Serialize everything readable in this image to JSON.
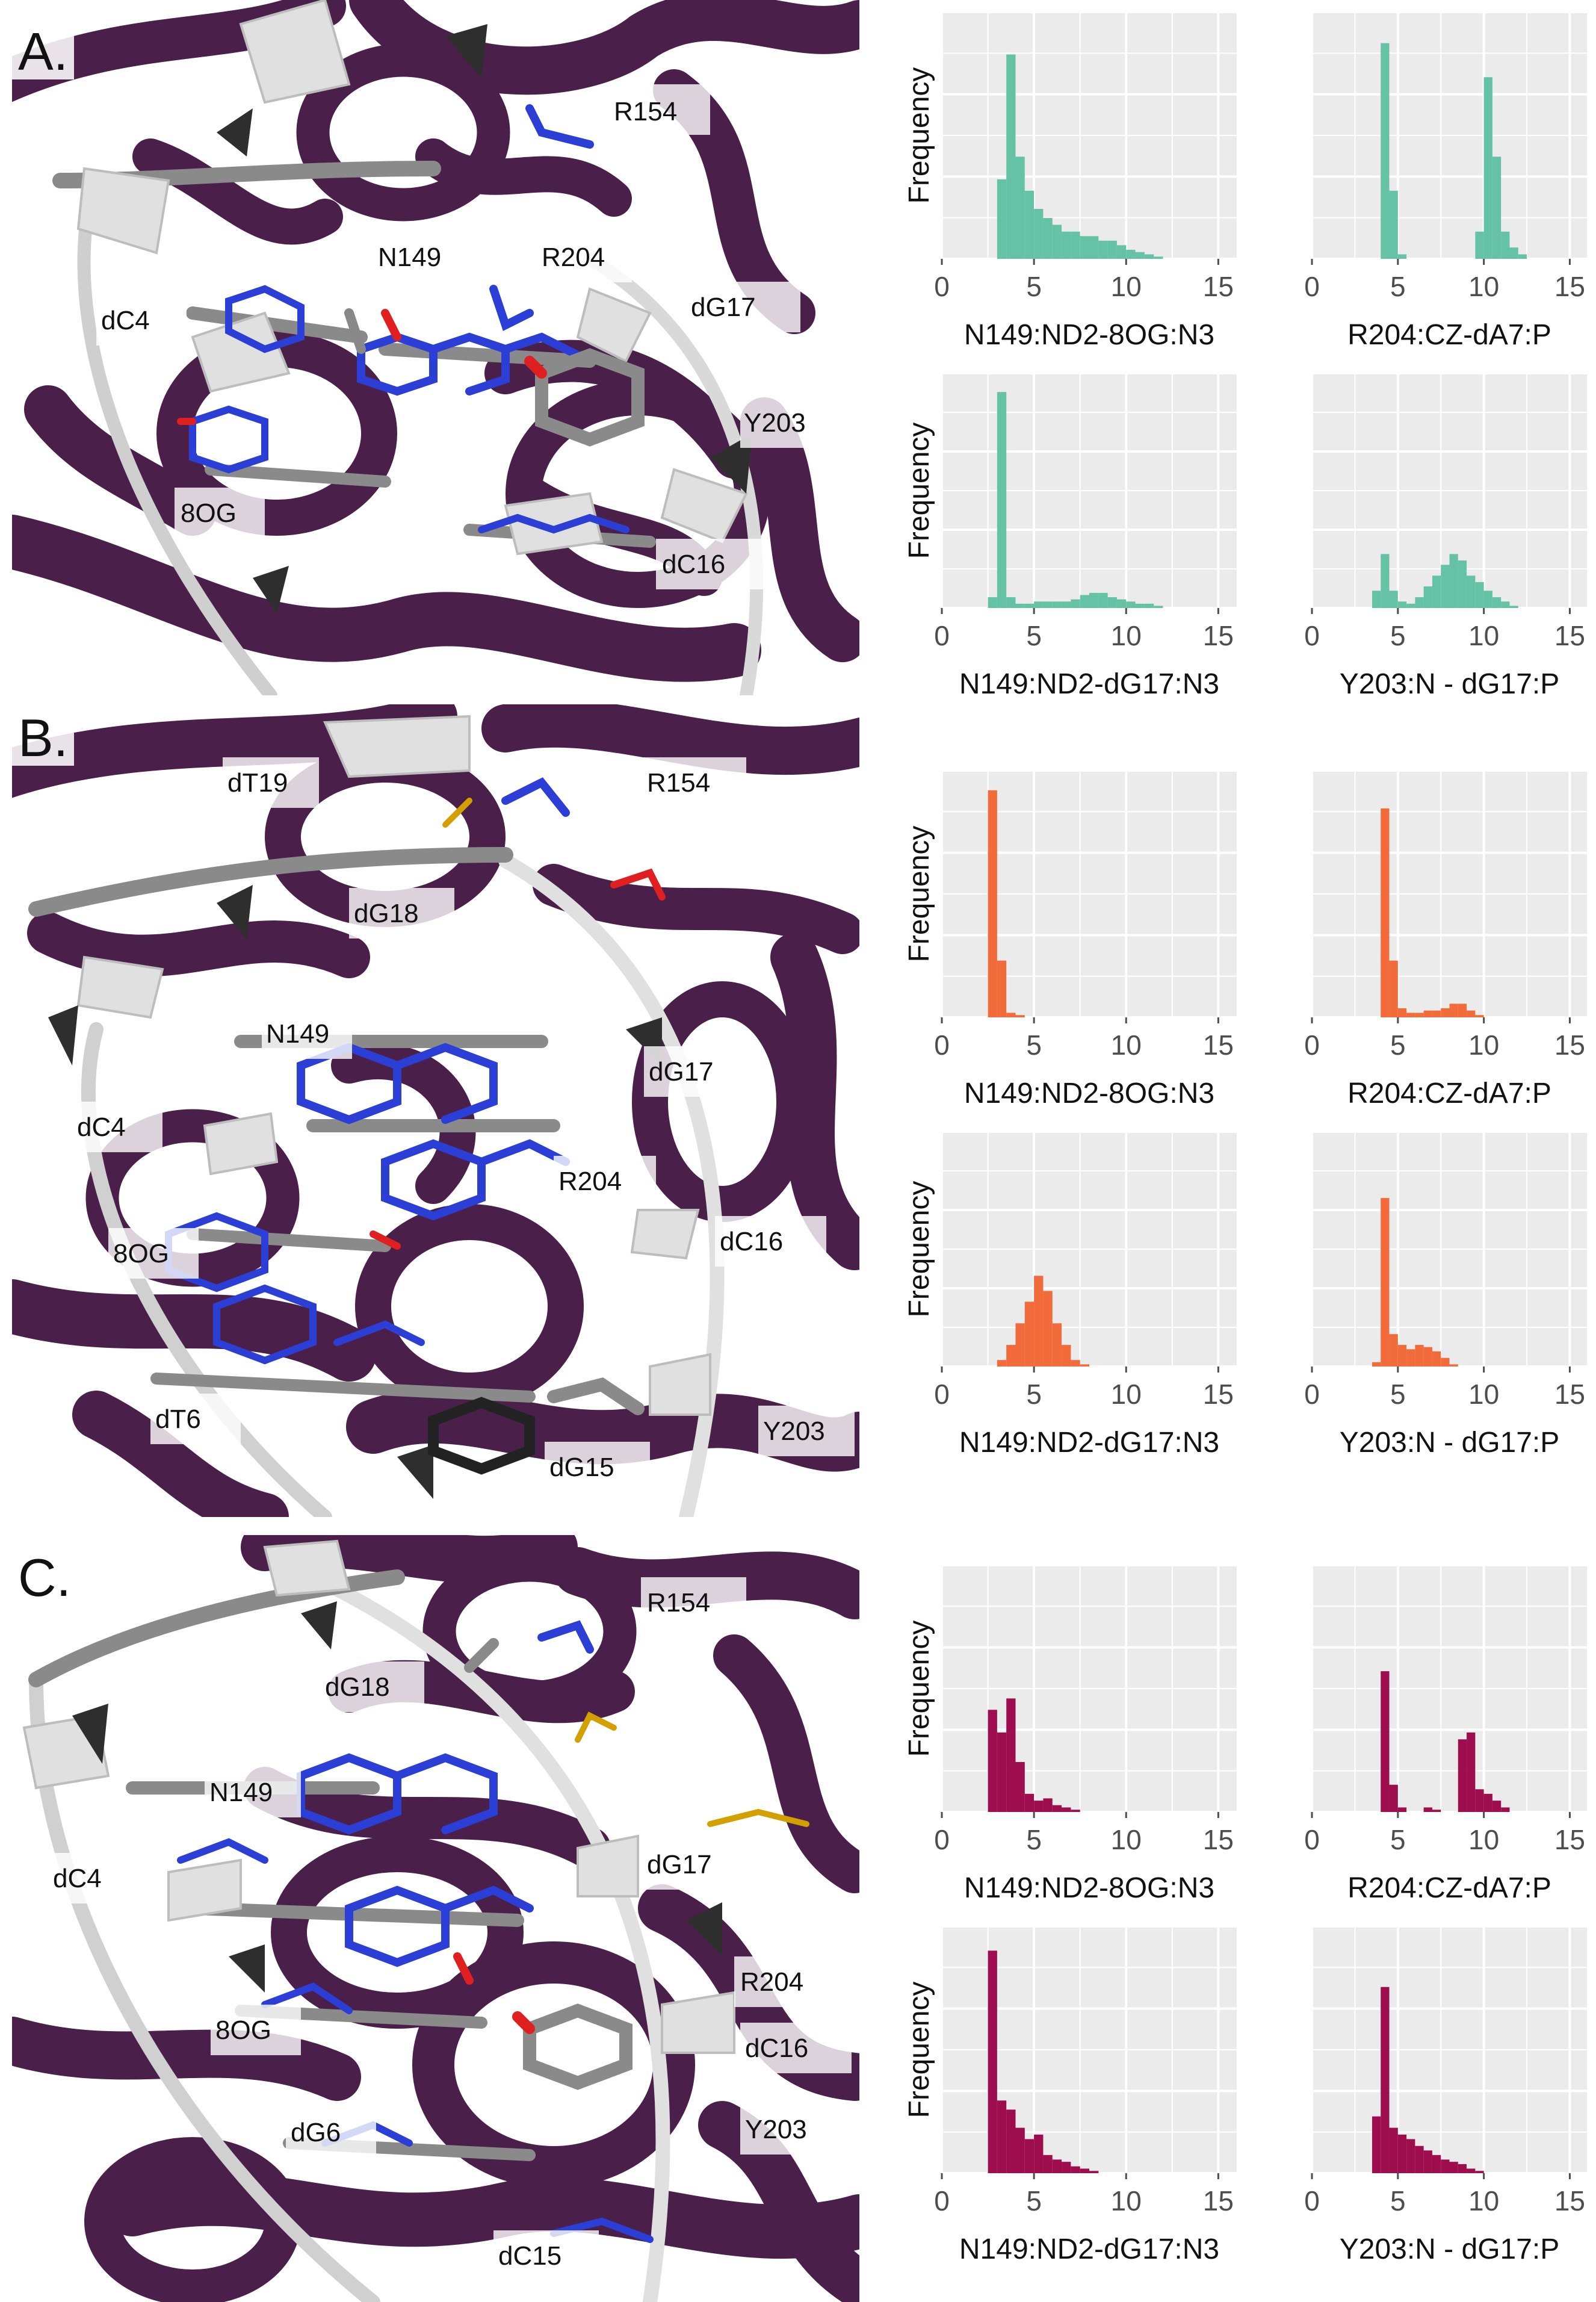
{
  "colors": {
    "A": "#66c2a5",
    "B": "#f26b3a",
    "C": "#9e0e4e",
    "protein": "#4a1f4a",
    "dna_backbone": "#cfcfcf",
    "panel_bg": "#ebebeb",
    "grid": "#ffffff"
  },
  "panels": [
    {
      "id": "A",
      "letter": "A.",
      "structure_labels": [
        "R154",
        "N149",
        "R204",
        "dG17",
        "dC4",
        "Y203",
        "8OG",
        "dC16"
      ]
    },
    {
      "id": "B",
      "letter": "B.",
      "structure_labels": [
        "dT19",
        "R154",
        "dG18",
        "N149",
        "dG17",
        "dC4",
        "R204",
        "dC16",
        "8OG",
        "dT6",
        "Y203",
        "dG15"
      ]
    },
    {
      "id": "C",
      "letter": "C.",
      "structure_labels": [
        "R154",
        "dG18",
        "N149",
        "dG17",
        "dC4",
        "R204",
        "8OG",
        "dC16",
        "Y203",
        "dG6",
        "dC15"
      ]
    }
  ],
  "chart_data": [
    {
      "panel": "A",
      "type": "bar",
      "histogram": true,
      "xlabel": "N149:ND2-8OG:N3",
      "ylabel": "Frequency",
      "xlim": [
        0,
        16
      ],
      "xticks": [
        0,
        5,
        10,
        15
      ],
      "bin_width": 0.5,
      "bins": [
        [
          3.0,
          0.35
        ],
        [
          3.5,
          0.9
        ],
        [
          4.0,
          0.45
        ],
        [
          4.5,
          0.3
        ],
        [
          5.0,
          0.22
        ],
        [
          5.5,
          0.18
        ],
        [
          6.0,
          0.15
        ],
        [
          6.5,
          0.12
        ],
        [
          7.0,
          0.12
        ],
        [
          7.5,
          0.1
        ],
        [
          8.0,
          0.1
        ],
        [
          8.5,
          0.08
        ],
        [
          9.0,
          0.08
        ],
        [
          9.5,
          0.06
        ],
        [
          10.0,
          0.04
        ],
        [
          10.5,
          0.03
        ],
        [
          11.0,
          0.02
        ],
        [
          11.5,
          0.01
        ]
      ]
    },
    {
      "panel": "A",
      "type": "bar",
      "histogram": true,
      "xlabel": "R204:CZ-dA7:P",
      "ylabel": "",
      "xlim": [
        0,
        16
      ],
      "xticks": [
        0,
        5,
        10,
        15
      ],
      "bin_width": 0.5,
      "bins": [
        [
          4.0,
          0.95
        ],
        [
          4.5,
          0.3
        ],
        [
          5.0,
          0.02
        ],
        [
          9.5,
          0.12
        ],
        [
          10.0,
          0.8
        ],
        [
          10.5,
          0.45
        ],
        [
          11.0,
          0.12
        ],
        [
          11.5,
          0.05
        ],
        [
          12.0,
          0.02
        ]
      ]
    },
    {
      "panel": "A",
      "type": "bar",
      "histogram": true,
      "xlabel": "N149:ND2-dG17:N3",
      "ylabel": "Frequency",
      "xlim": [
        0,
        16
      ],
      "xticks": [
        0,
        5,
        10,
        15
      ],
      "bin_width": 0.5,
      "bins": [
        [
          2.5,
          0.05
        ],
        [
          3.0,
          1.0
        ],
        [
          3.5,
          0.05
        ],
        [
          4.0,
          0.02
        ],
        [
          4.5,
          0.02
        ],
        [
          5.0,
          0.03
        ],
        [
          5.5,
          0.03
        ],
        [
          6.0,
          0.03
        ],
        [
          6.5,
          0.03
        ],
        [
          7.0,
          0.04
        ],
        [
          7.5,
          0.06
        ],
        [
          8.0,
          0.07
        ],
        [
          8.5,
          0.07
        ],
        [
          9.0,
          0.05
        ],
        [
          9.5,
          0.04
        ],
        [
          10.0,
          0.03
        ],
        [
          10.5,
          0.02
        ],
        [
          11.0,
          0.02
        ],
        [
          11.5,
          0.01
        ]
      ]
    },
    {
      "panel": "A",
      "type": "bar",
      "histogram": true,
      "xlabel": "Y203:N - dG17:P",
      "ylabel": "",
      "xlim": [
        0,
        16
      ],
      "xticks": [
        0,
        5,
        10,
        15
      ],
      "bin_width": 0.5,
      "bins": [
        [
          3.5,
          0.08
        ],
        [
          4.0,
          0.25
        ],
        [
          4.5,
          0.08
        ],
        [
          5.0,
          0.03
        ],
        [
          5.5,
          0.02
        ],
        [
          6.0,
          0.05
        ],
        [
          6.5,
          0.1
        ],
        [
          7.0,
          0.15
        ],
        [
          7.5,
          0.2
        ],
        [
          8.0,
          0.25
        ],
        [
          8.5,
          0.22
        ],
        [
          9.0,
          0.15
        ],
        [
          9.5,
          0.12
        ],
        [
          10.0,
          0.08
        ],
        [
          10.5,
          0.05
        ],
        [
          11.0,
          0.03
        ],
        [
          11.5,
          0.01
        ]
      ]
    },
    {
      "panel": "B",
      "type": "bar",
      "histogram": true,
      "xlabel": "N149:ND2-8OG:N3",
      "ylabel": "Frequency",
      "xlim": [
        0,
        16
      ],
      "xticks": [
        0,
        5,
        10,
        15
      ],
      "bin_width": 0.5,
      "bins": [
        [
          2.5,
          1.0
        ],
        [
          3.0,
          0.25
        ],
        [
          3.5,
          0.02
        ],
        [
          4.0,
          0.01
        ]
      ]
    },
    {
      "panel": "B",
      "type": "bar",
      "histogram": true,
      "xlabel": "R204:CZ-dA7:P",
      "ylabel": "",
      "xlim": [
        0,
        16
      ],
      "xticks": [
        0,
        5,
        10,
        15
      ],
      "bin_width": 0.5,
      "bins": [
        [
          4.0,
          0.92
        ],
        [
          4.5,
          0.25
        ],
        [
          5.0,
          0.04
        ],
        [
          5.5,
          0.02
        ],
        [
          6.0,
          0.02
        ],
        [
          6.5,
          0.03
        ],
        [
          7.0,
          0.03
        ],
        [
          7.5,
          0.04
        ],
        [
          8.0,
          0.06
        ],
        [
          8.5,
          0.06
        ],
        [
          9.0,
          0.03
        ],
        [
          9.5,
          0.01
        ]
      ]
    },
    {
      "panel": "B",
      "type": "bar",
      "histogram": true,
      "xlabel": "N149:ND2-dG17:N3",
      "ylabel": "Frequency",
      "xlim": [
        0,
        16
      ],
      "xticks": [
        0,
        5,
        10,
        15
      ],
      "bin_width": 0.5,
      "bins": [
        [
          3.0,
          0.03
        ],
        [
          3.5,
          0.1
        ],
        [
          4.0,
          0.2
        ],
        [
          4.5,
          0.3
        ],
        [
          5.0,
          0.42
        ],
        [
          5.5,
          0.35
        ],
        [
          6.0,
          0.2
        ],
        [
          6.5,
          0.1
        ],
        [
          7.0,
          0.03
        ],
        [
          7.5,
          0.01
        ]
      ]
    },
    {
      "panel": "B",
      "type": "bar",
      "histogram": true,
      "xlabel": "Y203:N - dG17:P",
      "ylabel": "",
      "xlim": [
        0,
        16
      ],
      "xticks": [
        0,
        5,
        10,
        15
      ],
      "bin_width": 0.5,
      "bins": [
        [
          3.5,
          0.02
        ],
        [
          4.0,
          0.78
        ],
        [
          4.5,
          0.15
        ],
        [
          5.0,
          0.1
        ],
        [
          5.5,
          0.08
        ],
        [
          6.0,
          0.1
        ],
        [
          6.5,
          0.09
        ],
        [
          7.0,
          0.07
        ],
        [
          7.5,
          0.04
        ],
        [
          8.0,
          0.01
        ]
      ]
    },
    {
      "panel": "C",
      "type": "bar",
      "histogram": true,
      "xlabel": "N149:ND2-8OG:N3",
      "ylabel": "Frequency",
      "xlim": [
        0,
        16
      ],
      "xticks": [
        0,
        5,
        10,
        15
      ],
      "bin_width": 0.5,
      "bins": [
        [
          2.5,
          0.45
        ],
        [
          3.0,
          0.35
        ],
        [
          3.5,
          0.5
        ],
        [
          4.0,
          0.22
        ],
        [
          4.5,
          0.08
        ],
        [
          5.0,
          0.05
        ],
        [
          5.5,
          0.06
        ],
        [
          6.0,
          0.03
        ],
        [
          6.5,
          0.02
        ],
        [
          7.0,
          0.01
        ]
      ]
    },
    {
      "panel": "C",
      "type": "bar",
      "histogram": true,
      "xlabel": "R204:CZ-dA7:P",
      "ylabel": "",
      "xlim": [
        0,
        16
      ],
      "xticks": [
        0,
        5,
        10,
        15
      ],
      "bin_width": 0.5,
      "bins": [
        [
          4.0,
          0.62
        ],
        [
          4.5,
          0.12
        ],
        [
          5.0,
          0.02
        ],
        [
          6.5,
          0.02
        ],
        [
          7.0,
          0.01
        ],
        [
          8.5,
          0.32
        ],
        [
          9.0,
          0.35
        ],
        [
          9.5,
          0.1
        ],
        [
          10.0,
          0.08
        ],
        [
          10.5,
          0.05
        ],
        [
          11.0,
          0.02
        ]
      ]
    },
    {
      "panel": "C",
      "type": "bar",
      "histogram": true,
      "xlabel": "N149:ND2-dG17:N3",
      "ylabel": "Frequency",
      "xlim": [
        0,
        16
      ],
      "xticks": [
        0,
        5,
        10,
        15
      ],
      "bin_width": 0.5,
      "bins": [
        [
          2.5,
          0.98
        ],
        [
          3.0,
          0.32
        ],
        [
          3.5,
          0.28
        ],
        [
          4.0,
          0.2
        ],
        [
          4.5,
          0.15
        ],
        [
          5.0,
          0.17
        ],
        [
          5.5,
          0.08
        ],
        [
          6.0,
          0.06
        ],
        [
          6.5,
          0.05
        ],
        [
          7.0,
          0.03
        ],
        [
          7.5,
          0.02
        ],
        [
          8.0,
          0.01
        ]
      ]
    },
    {
      "panel": "C",
      "type": "bar",
      "histogram": true,
      "xlabel": "Y203:N - dG17:P",
      "ylabel": "",
      "xlim": [
        0,
        16
      ],
      "xticks": [
        0,
        5,
        10,
        15
      ],
      "bin_width": 0.5,
      "bins": [
        [
          3.5,
          0.25
        ],
        [
          4.0,
          0.82
        ],
        [
          4.5,
          0.2
        ],
        [
          5.0,
          0.17
        ],
        [
          5.5,
          0.15
        ],
        [
          6.0,
          0.12
        ],
        [
          6.5,
          0.1
        ],
        [
          7.0,
          0.08
        ],
        [
          7.5,
          0.06
        ],
        [
          8.0,
          0.05
        ],
        [
          8.5,
          0.04
        ],
        [
          9.0,
          0.02
        ],
        [
          9.5,
          0.01
        ]
      ]
    }
  ]
}
